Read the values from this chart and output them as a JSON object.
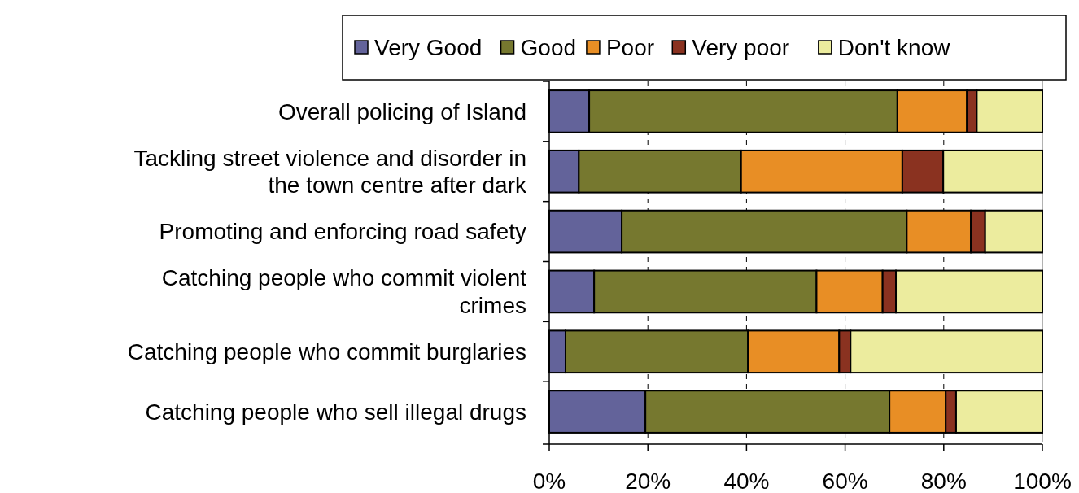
{
  "chart_data": {
    "type": "bar",
    "orientation": "horizontal",
    "stacked": true,
    "categories": [
      "Overall policing of Island",
      "Tackling street violence and disorder in the town centre after dark",
      "Promoting and enforcing road safety",
      "Catching people who commit violent crimes",
      "Catching people who commit burglaries",
      "Catching people who sell illegal drugs"
    ],
    "series": [
      {
        "name": "Very Good",
        "color": "#63639a",
        "values": [
          8.1,
          6,
          14.7,
          9.1,
          3.3,
          19.5
        ]
      },
      {
        "name": "Good",
        "color": "#76782f",
        "values": [
          62.5,
          32.9,
          57.8,
          45.1,
          37,
          49.5
        ]
      },
      {
        "name": "Poor",
        "color": "#e88e25",
        "values": [
          14.1,
          32.7,
          13,
          13.4,
          18.5,
          11.4
        ]
      },
      {
        "name": "Very poor",
        "color": "#8a3220",
        "values": [
          2,
          8.3,
          2.9,
          2.7,
          2.3,
          2.1
        ]
      },
      {
        "name": "Don't know",
        "color": "#ecec9e",
        "values": [
          13.3,
          20.1,
          11.6,
          29.7,
          38.9,
          17.5
        ]
      }
    ],
    "xlim": [
      0,
      100
    ],
    "xticks": [
      {
        "value": 0,
        "label": "0%"
      },
      {
        "value": 20,
        "label": "20%"
      },
      {
        "value": 40,
        "label": "40%"
      },
      {
        "value": 60,
        "label": "60%"
      },
      {
        "value": 80,
        "label": "80%"
      },
      {
        "value": 100,
        "label": "100%"
      }
    ],
    "grid": "x",
    "legend": "top"
  }
}
